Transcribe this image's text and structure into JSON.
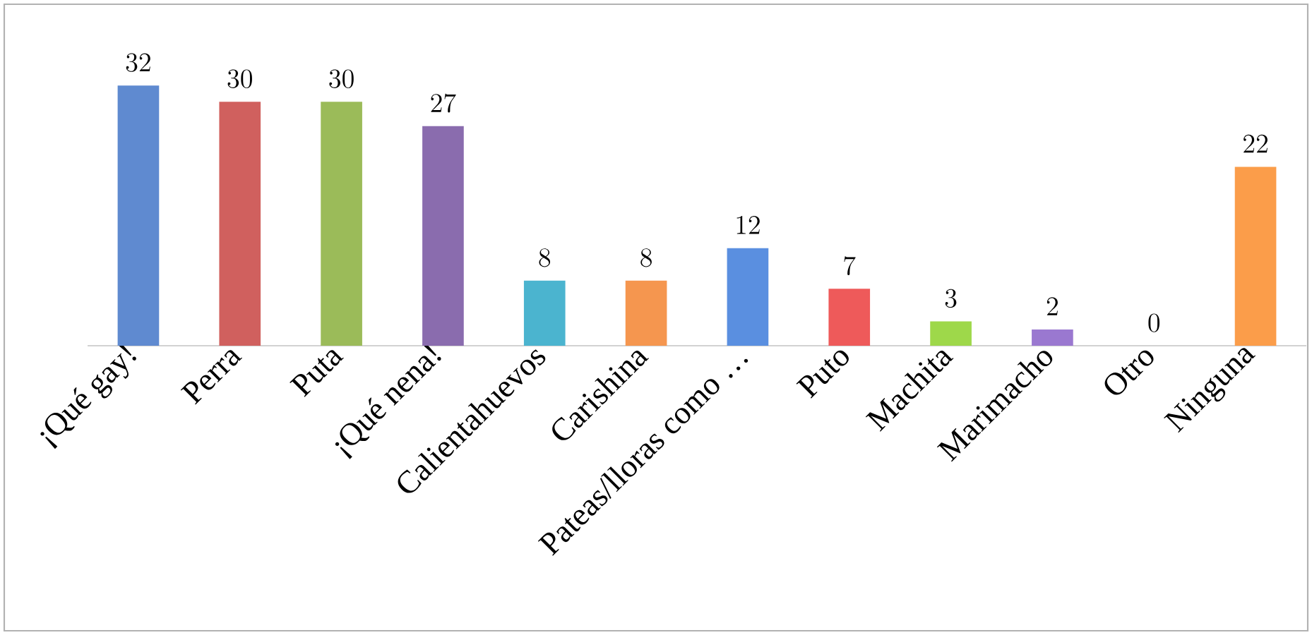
{
  "chart_data": {
    "type": "bar",
    "categories": [
      "¡Qué gay!",
      "Perra",
      "Puta",
      "¡Qué nena!",
      "Calientahuevos",
      "Carishina",
      "Pateas/lloras como …",
      "Puto",
      "Machita",
      "Marimacho",
      "Otro",
      "Ninguna"
    ],
    "values": [
      32,
      30,
      30,
      27,
      8,
      8,
      12,
      7,
      3,
      2,
      0,
      22
    ],
    "colors": [
      "#5f8ad0",
      "#d0605e",
      "#9bbb59",
      "#8a6cae",
      "#4bb4cf",
      "#f5964f",
      "#5a8fe0",
      "#ee5a5a",
      "#9ed84a",
      "#9a78d0",
      "#cccccc",
      "#fb9d4a"
    ],
    "data_labels": true
  }
}
